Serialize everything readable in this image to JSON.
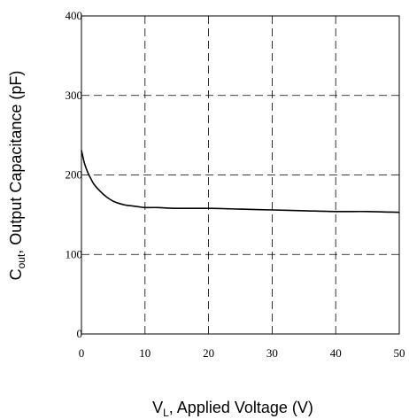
{
  "chart_data": {
    "type": "line",
    "title": "",
    "xlabel": {
      "main": "V",
      "sub": "L",
      "rest": ", Applied Voltage (V)"
    },
    "ylabel": {
      "main": "C",
      "sub": "out",
      "rest": ", Output Capacitance (pF)"
    },
    "xlim": [
      0,
      50
    ],
    "ylim": [
      0,
      400
    ],
    "xticks": [
      0,
      10,
      20,
      30,
      40,
      50
    ],
    "yticks": [
      0,
      100,
      200,
      300,
      400
    ],
    "grid": true,
    "grid_style": "dashed",
    "line_color": "#000000",
    "series": [
      {
        "x": [
          0,
          0.25,
          0.5,
          1,
          1.5,
          2,
          3,
          4,
          5,
          6,
          7,
          8,
          9,
          10,
          12,
          15,
          20,
          25,
          30,
          35,
          40,
          45,
          50
        ],
        "y": [
          231,
          222,
          214,
          203,
          195,
          188,
          179,
          172,
          167,
          164,
          162,
          161,
          160,
          159,
          159,
          158,
          158,
          157,
          156,
          155,
          154,
          154,
          153
        ]
      }
    ]
  }
}
